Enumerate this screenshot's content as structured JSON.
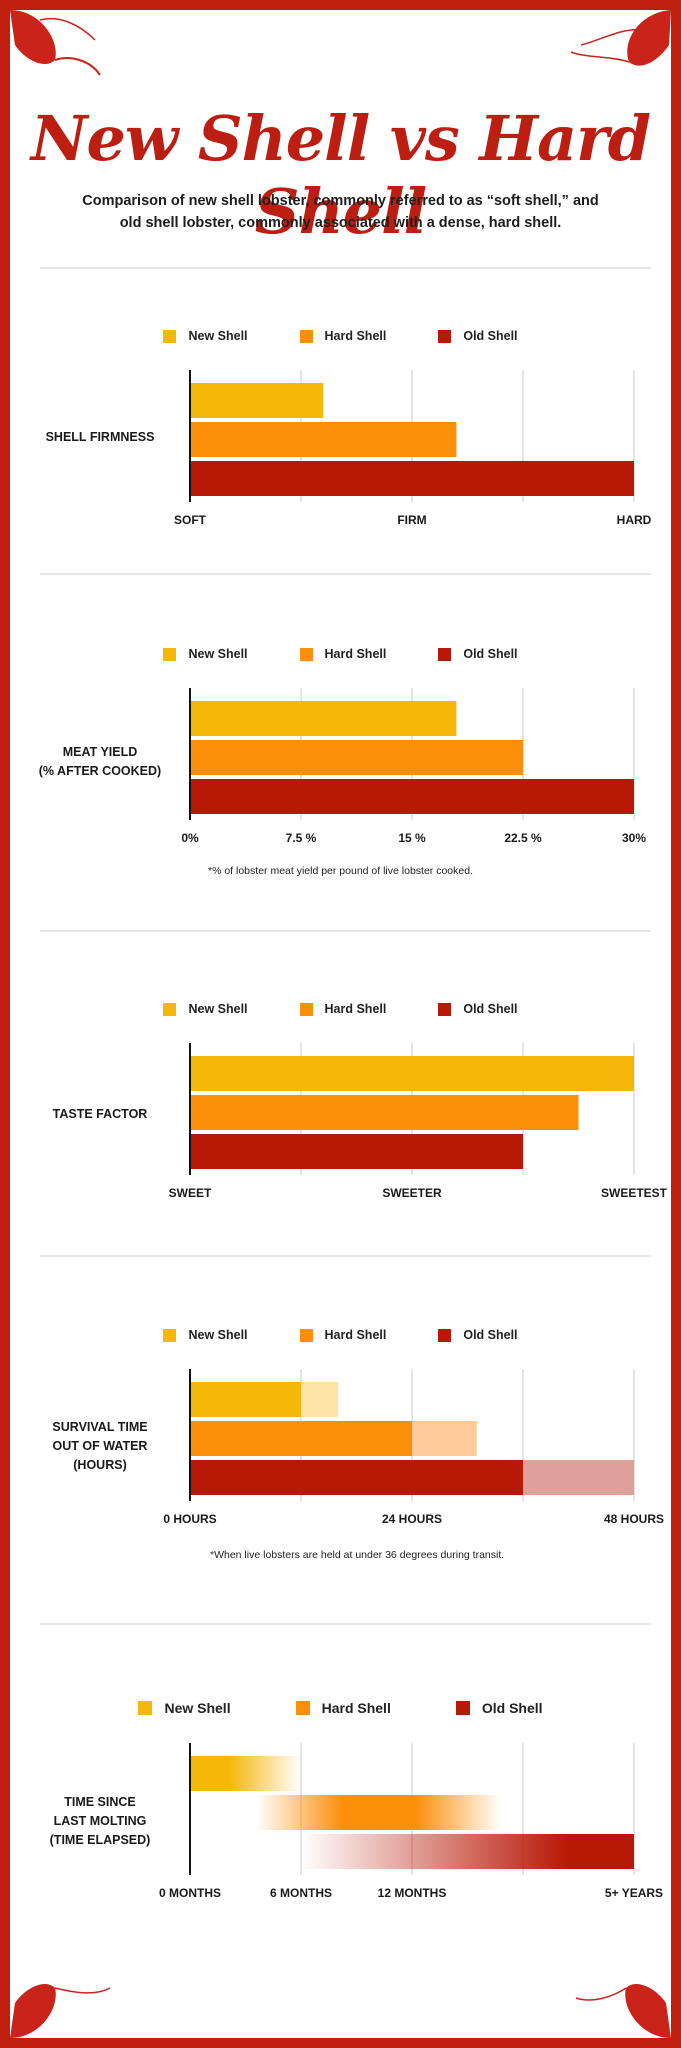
{
  "title": "New Shell vs Hard Shell",
  "subtitle": "Comparison of new shell lobster, commonly referred to as “soft shell,” and old shell lobster, commonly associated with a dense, hard shell.",
  "colors": {
    "border": "#c01f10",
    "new": "#f5b70a",
    "hard": "#fb8f0a",
    "old": "#b81806"
  },
  "legend": [
    {
      "name": "New Shell",
      "color": "#f5b70a"
    },
    {
      "name": "Hard Shell",
      "color": "#fb8f0a"
    },
    {
      "name": "Old Shell",
      "color": "#b81806"
    }
  ],
  "notes": {
    "meat_yield": "*% of lobster meat yield per pound of live lobster cooked.",
    "survival": "*When live lobsters are held at under 36 degrees during transit."
  },
  "chart_data": [
    {
      "type": "bar",
      "title": "SHELL FIRMNESS",
      "categories": [
        "New Shell",
        "Hard Shell",
        "Old Shell"
      ],
      "values": [
        1.2,
        2.4,
        4.0
      ],
      "xlim": [
        0,
        4
      ],
      "tick_labels": [
        {
          "value": 0,
          "label": "SOFT"
        },
        {
          "value": 2,
          "label": "FIRM"
        },
        {
          "value": 4,
          "label": "HARD"
        }
      ],
      "grid": true
    },
    {
      "type": "bar",
      "title": "MEAT YIELD",
      "subtitle": "(% AFTER COOKED)",
      "categories": [
        "New Shell",
        "Hard Shell",
        "Old Shell"
      ],
      "values": [
        18,
        22.5,
        30
      ],
      "xlim": [
        0,
        30
      ],
      "tick_labels": [
        {
          "value": 0,
          "label": "0%"
        },
        {
          "value": 7.5,
          "label": "7.5 %"
        },
        {
          "value": 15,
          "label": "15 %"
        },
        {
          "value": 22.5,
          "label": "22.5 %"
        },
        {
          "value": 30,
          "label": "30%"
        }
      ],
      "grid": true
    },
    {
      "type": "bar",
      "title": "TASTE FACTOR",
      "categories": [
        "New Shell",
        "Hard Shell",
        "Old Shell"
      ],
      "values": [
        4.0,
        3.5,
        3.0
      ],
      "xlim": [
        0,
        4
      ],
      "tick_labels": [
        {
          "value": 0,
          "label": "SWEET"
        },
        {
          "value": 2,
          "label": "SWEETER"
        },
        {
          "value": 4,
          "label": "SWEETEST"
        }
      ],
      "grid": true
    },
    {
      "type": "bar",
      "title": "SURVIVAL TIME",
      "subtitle": "OUT OF WATER",
      "subtitle2": "(HOURS)",
      "categories": [
        "New Shell",
        "Hard Shell",
        "Old Shell"
      ],
      "values": [
        12,
        24,
        36
      ],
      "range_max": [
        16,
        31,
        48
      ],
      "xlim": [
        0,
        48
      ],
      "tick_labels": [
        {
          "value": 0,
          "label": "0 HOURS"
        },
        {
          "value": 24,
          "label": "24 HOURS"
        },
        {
          "value": 48,
          "label": "48 HOURS"
        }
      ],
      "grid": true
    },
    {
      "type": "bar",
      "title": "TIME SINCE",
      "subtitle": "LAST MOLTING",
      "subtitle2": "(TIME ELAPSED)",
      "categories": [
        "New Shell",
        "Hard Shell",
        "Old Shell"
      ],
      "ranges": [
        [
          0,
          1
        ],
        [
          0.6,
          2.8
        ],
        [
          1,
          4
        ]
      ],
      "solid_end": [
        true,
        false,
        true
      ],
      "xlim": [
        0,
        4
      ],
      "tick_labels": [
        {
          "value": 0,
          "label": "0 MONTHS"
        },
        {
          "value": 1,
          "label": "6 MONTHS"
        },
        {
          "value": 2,
          "label": "12 MONTHS"
        },
        {
          "value": 4,
          "label": "5+ YEARS"
        }
      ],
      "grid": true
    }
  ]
}
